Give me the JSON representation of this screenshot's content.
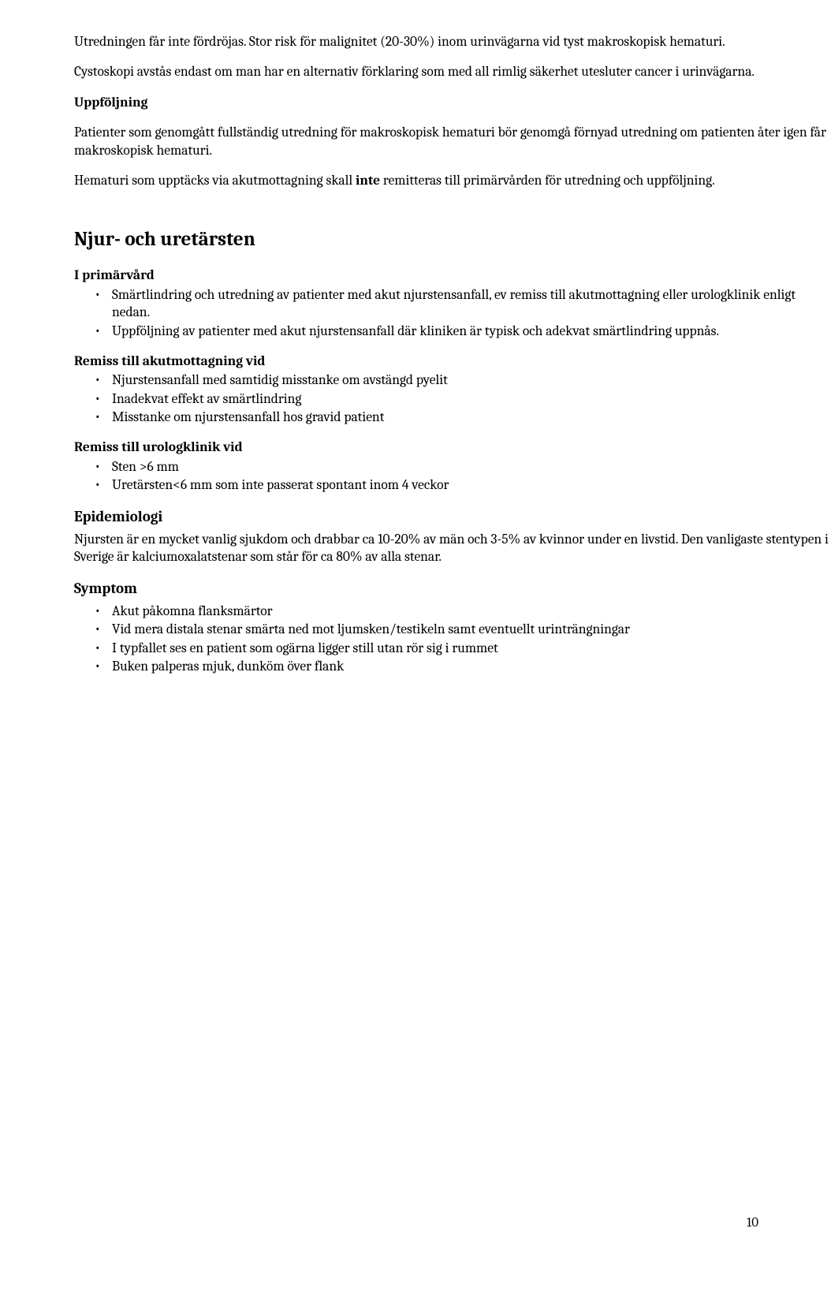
{
  "colors": {
    "background": "#ffffff",
    "text": "#000000"
  },
  "typography": {
    "body_font": "Cambria, Georgia, serif",
    "body_size_pt": 13,
    "h2_size_pt": 19,
    "h3_size_pt": 14,
    "line_height": 1.28
  },
  "paragraphs": {
    "p1": "Utredningen får inte fördröjas. Stor risk för malignitet (20-30%) inom urinvägarna vid tyst makroskopisk hematuri.",
    "p2": "Cystoskopi avstås endast om man har en alternativ förklaring som med all rimlig säkerhet utesluter cancer i urinvägarna.",
    "uppfoljning_heading": "Uppföljning",
    "p3": "Patienter som genomgått fullständig utredning för makroskopisk hematuri bör genomgå förnyad utredning om patienten åter igen får makroskopisk hematuri.",
    "p4_a": "Hematuri som upptäcks via akutmottagning skall ",
    "p4_b_bold": "inte",
    "p4_c": " remitteras till primärvården för utredning och uppföljning."
  },
  "section2": {
    "title": "Njur- och uretärsten",
    "primarvard": {
      "heading": "I primärvård",
      "items": [
        "Smärtlindring och utredning av patienter med akut njurstensanfall, ev remiss till akutmottagning eller urologklinik enligt nedan.",
        "Uppföljning av patienter med akut njurstensanfall där kliniken är typisk och adekvat smärtlindring uppnås."
      ]
    },
    "akut": {
      "heading": "Remiss till akutmottagning vid",
      "items": [
        "Njurstensanfall med samtidig misstanke om avstängd pyelit",
        "Inadekvat effekt av smärtlindring",
        "Misstanke om njurstensanfall hos gravid patient"
      ]
    },
    "urolog": {
      "heading": "Remiss till urologklinik vid",
      "items": [
        "Sten >6 mm",
        "Uretärsten<6 mm som inte passerat spontant inom 4 veckor"
      ]
    },
    "epi": {
      "heading": "Epidemiologi",
      "text": "Njursten är en mycket vanlig sjukdom och drabbar ca 10-20% av män och 3-5% av kvinnor under en livstid. Den vanligaste stentypen i Sverige är kalciumoxalatstenar som står för ca 80% av alla stenar."
    },
    "symptom": {
      "heading": "Symptom",
      "items": [
        "Akut påkomna flanksmärtor",
        "Vid mera distala stenar smärta ned mot ljumsken/testikeln samt eventuellt urinträngningar",
        "I typfallet ses en patient som ogärna ligger still utan rör sig i rummet",
        "Buken palperas mjuk, dunköm över flank"
      ]
    }
  },
  "page_number": "10"
}
